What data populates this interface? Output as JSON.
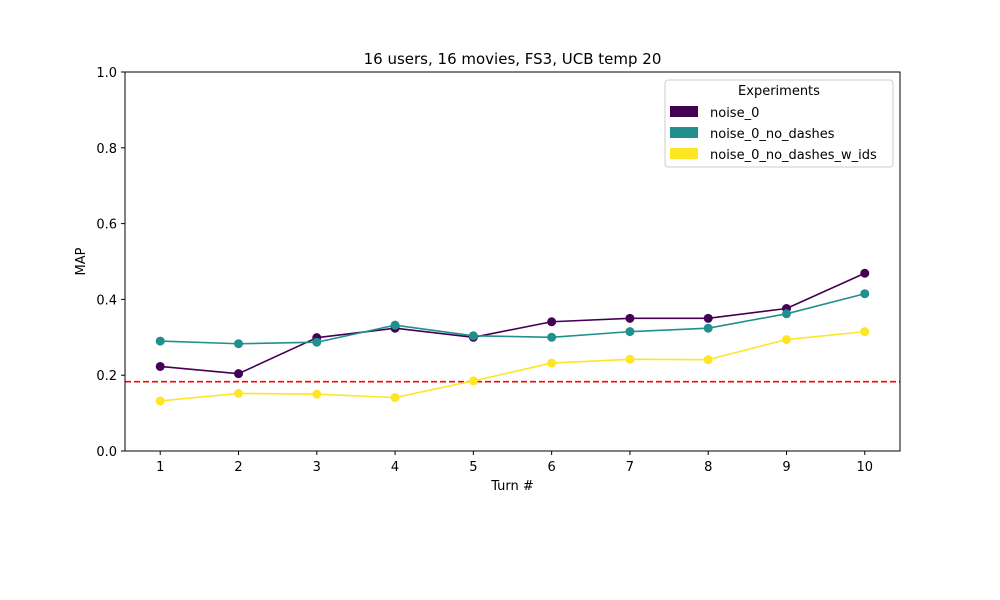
{
  "chart_data": {
    "type": "line",
    "title": "16 users, 16 movies, FS3, UCB temp 20",
    "xlabel": "Turn #",
    "ylabel": "MAP",
    "x": [
      1,
      2,
      3,
      4,
      5,
      6,
      7,
      8,
      9,
      10
    ],
    "x_ticks": [
      "1",
      "2",
      "3",
      "4",
      "5",
      "6",
      "7",
      "8",
      "9",
      "10"
    ],
    "y_ticks": [
      "0.0",
      "0.2",
      "0.4",
      "0.6",
      "0.8",
      "1.0"
    ],
    "ylim": [
      0,
      1
    ],
    "xlim": [
      0.55,
      10.45
    ],
    "grid": false,
    "legend": {
      "title": "Experiments",
      "position": "top-right"
    },
    "series": [
      {
        "name": "noise_0",
        "color": "#440154",
        "values": [
          0.223,
          0.204,
          0.299,
          0.324,
          0.3,
          0.341,
          0.35,
          0.35,
          0.376,
          0.469
        ]
      },
      {
        "name": "noise_0_no_dashes",
        "color": "#21908d",
        "values": [
          0.29,
          0.283,
          0.287,
          0.332,
          0.304,
          0.3,
          0.315,
          0.324,
          0.362,
          0.415
        ]
      },
      {
        "name": "noise_0_no_dashes_w_ids",
        "color": "#fde725",
        "values": [
          0.132,
          0.152,
          0.15,
          0.141,
          0.185,
          0.232,
          0.242,
          0.241,
          0.294,
          0.315
        ]
      }
    ],
    "reference_lines": [
      {
        "orientation": "horizontal",
        "y": 0.183,
        "color": "#ff0000",
        "style": "dashed"
      }
    ]
  }
}
